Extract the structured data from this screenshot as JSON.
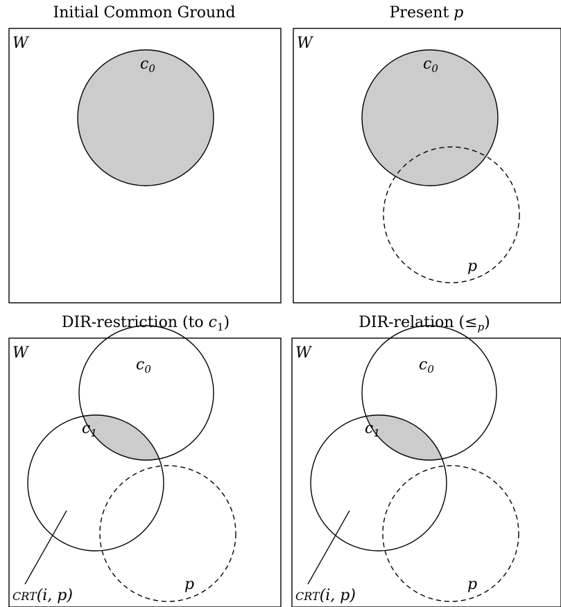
{
  "panels": [
    {
      "title_main": "Initial Common Ground",
      "title_math": "",
      "world_label": "W",
      "c0_label": "c",
      "c0_sub": "0"
    },
    {
      "title_main": "Present ",
      "title_math": "p",
      "world_label": "W",
      "c0_label": "c",
      "c0_sub": "0",
      "p_label": "p"
    },
    {
      "title_main": "DIR-restriction (to ",
      "title_math": "c",
      "title_sub": "1",
      "title_end": ")",
      "world_label": "W",
      "c0_label": "c",
      "c0_sub": "0",
      "c1_label": "c",
      "c1_sub": "1",
      "p_label": "p",
      "crt_label": "CRT",
      "crt_args": "(i, p)"
    },
    {
      "title_main": "DIR-relation (",
      "title_math": "≤",
      "title_sub": "p",
      "title_end": ")",
      "world_label": "W",
      "c0_label": "c",
      "c0_sub": "0",
      "c1_label": "c",
      "c1_sub": "1",
      "p_label": "p",
      "crt_label": "CRT",
      "crt_args": "(i, p)"
    }
  ],
  "colors": {
    "light_shade": "#cccccc",
    "dark_shade": "#808080",
    "stroke": "#000000"
  }
}
